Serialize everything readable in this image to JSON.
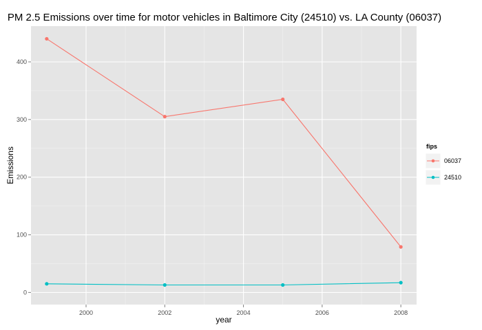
{
  "chart_data": {
    "type": "line",
    "title": "PM 2.5 Emissions over time for motor vehicles in Baltimore City (24510) vs. LA County (06037)",
    "xlabel": "year",
    "ylabel": "Emissions",
    "x": [
      1999,
      2002,
      2005,
      2008
    ],
    "xlim": [
      1998.6,
      2008.4
    ],
    "ylim": [
      -21,
      462
    ],
    "xticks": [
      2000,
      2002,
      2004,
      2006,
      2008
    ],
    "yticks": [
      0,
      100,
      200,
      300,
      400
    ],
    "grid": true,
    "background": "#e5e5e5",
    "legend": {
      "title": "fips",
      "position": "right"
    },
    "series": [
      {
        "name": "06037",
        "color": "#f8766d",
        "values": [
          440,
          305,
          335,
          79
        ]
      },
      {
        "name": "24510",
        "color": "#00bfc4",
        "values": [
          15,
          13,
          13,
          17
        ]
      }
    ]
  }
}
